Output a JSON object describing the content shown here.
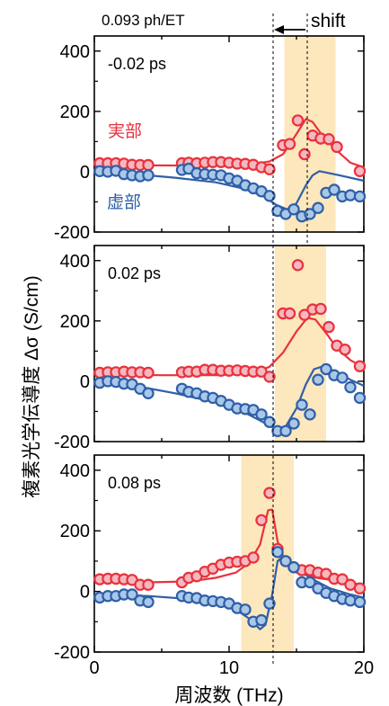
{
  "figure": {
    "fluence_label": "0.093 ph/ET",
    "shift_label": "shift",
    "ylabel": "複素光学伝導度 Δσ (S/cm)",
    "xlabel": "周波数 (THz)",
    "real_label": "実部",
    "imag_label": "虚部",
    "colors": {
      "real": "#e8323c",
      "real_fill": "#f5b8c0",
      "imag": "#2f5fa8",
      "imag_fill": "#a9c8e8",
      "band": "#fde7bc"
    }
  },
  "chart_data": [
    {
      "type": "scatter",
      "panel_label": "-0.02 ps",
      "xlim": [
        0,
        20
      ],
      "ylim": [
        -200,
        450
      ],
      "yticks": [
        -200,
        0,
        200,
        400
      ],
      "xticks": [
        0,
        10,
        20
      ],
      "shaded_band": [
        14.1,
        17.9
      ],
      "series": [
        {
          "name": "実部",
          "points": [
            [
              0.4,
              28
            ],
            [
              1.0,
              28
            ],
            [
              1.6,
              28
            ],
            [
              2.2,
              27
            ],
            [
              2.8,
              23
            ],
            [
              3.4,
              22
            ],
            [
              4.0,
              22
            ],
            [
              6.5,
              28
            ],
            [
              7.0,
              30
            ],
            [
              7.6,
              28
            ],
            [
              8.2,
              30
            ],
            [
              8.8,
              32
            ],
            [
              9.4,
              32
            ],
            [
              10.0,
              30
            ],
            [
              10.6,
              27
            ],
            [
              11.2,
              26
            ],
            [
              11.8,
              23
            ],
            [
              12.4,
              15
            ],
            [
              13.0,
              8
            ],
            [
              14.0,
              88
            ],
            [
              14.5,
              92
            ],
            [
              15.1,
              170
            ],
            [
              15.6,
              58
            ],
            [
              16.2,
              120
            ],
            [
              16.8,
              110
            ],
            [
              17.4,
              108
            ],
            [
              18.0,
              82
            ],
            [
              19.7,
              2
            ]
          ],
          "fit": [
            [
              0,
              24
            ],
            [
              4,
              21
            ],
            [
              8,
              20
            ],
            [
              10,
              21
            ],
            [
              12,
              26
            ],
            [
              13,
              34
            ],
            [
              14,
              58
            ],
            [
              15,
              125
            ],
            [
              15.7,
              175
            ],
            [
              16.2,
              165
            ],
            [
              17,
              115
            ],
            [
              18,
              70
            ],
            [
              19,
              30
            ],
            [
              20,
              14
            ]
          ]
        },
        {
          "name": "虚部",
          "points": [
            [
              0.4,
              2
            ],
            [
              1.0,
              0
            ],
            [
              1.6,
              3
            ],
            [
              2.2,
              -8
            ],
            [
              2.8,
              -12
            ],
            [
              3.4,
              -15
            ],
            [
              4.0,
              -12
            ],
            [
              6.5,
              6
            ],
            [
              7.0,
              10
            ],
            [
              7.6,
              -5
            ],
            [
              8.2,
              -8
            ],
            [
              8.8,
              -10
            ],
            [
              9.4,
              -12
            ],
            [
              10.0,
              -22
            ],
            [
              10.6,
              -30
            ],
            [
              11.2,
              -45
            ],
            [
              11.8,
              -55
            ],
            [
              12.4,
              -65
            ],
            [
              13.0,
              -80
            ],
            [
              13.6,
              -130
            ],
            [
              14.2,
              -140
            ],
            [
              14.8,
              -125
            ],
            [
              15.4,
              -148
            ],
            [
              16.0,
              -140
            ],
            [
              16.6,
              -120
            ],
            [
              17.2,
              -70
            ],
            [
              17.8,
              -60
            ],
            [
              18.4,
              -82
            ],
            [
              19.0,
              -78
            ],
            [
              19.7,
              -82
            ]
          ],
          "fit": [
            [
              0,
              0
            ],
            [
              3,
              -8
            ],
            [
              6,
              -20
            ],
            [
              9,
              -35
            ],
            [
              11,
              -55
            ],
            [
              12.5,
              -80
            ],
            [
              13.5,
              -110
            ],
            [
              14.3,
              -125
            ],
            [
              15.0,
              -105
            ],
            [
              15.7,
              -45
            ],
            [
              16.2,
              -12
            ],
            [
              16.7,
              2
            ],
            [
              18,
              -10
            ],
            [
              20,
              -30
            ]
          ]
        }
      ]
    },
    {
      "type": "scatter",
      "panel_label": "0.02 ps",
      "xlim": [
        0,
        20
      ],
      "ylim": [
        -200,
        450
      ],
      "yticks": [
        -200,
        0,
        200,
        400
      ],
      "xticks": [
        0,
        10,
        20
      ],
      "shaded_band": [
        13.4,
        17.2
      ],
      "series": [
        {
          "name": "実部",
          "points": [
            [
              0.4,
              28
            ],
            [
              1.0,
              30
            ],
            [
              1.6,
              30
            ],
            [
              2.2,
              32
            ],
            [
              2.8,
              30
            ],
            [
              3.4,
              30
            ],
            [
              4.0,
              28
            ],
            [
              6.5,
              30
            ],
            [
              7.0,
              32
            ],
            [
              7.6,
              32
            ],
            [
              8.2,
              38
            ],
            [
              8.8,
              38
            ],
            [
              9.4,
              35
            ],
            [
              10.0,
              35
            ],
            [
              10.6,
              36
            ],
            [
              11.2,
              34
            ],
            [
              11.8,
              32
            ],
            [
              12.4,
              32
            ],
            [
              13.0,
              15
            ],
            [
              14.0,
              225
            ],
            [
              14.5,
              225
            ],
            [
              15.1,
              385
            ],
            [
              15.6,
              220
            ],
            [
              16.2,
              238
            ],
            [
              16.8,
              240
            ],
            [
              17.4,
              180
            ],
            [
              18.0,
              118
            ],
            [
              18.6,
              105
            ],
            [
              19.7,
              50
            ]
          ],
          "fit": [
            [
              0,
              22
            ],
            [
              5,
              20
            ],
            [
              9,
              20
            ],
            [
              11,
              24
            ],
            [
              12,
              30
            ],
            [
              13,
              48
            ],
            [
              14,
              95
            ],
            [
              15,
              165
            ],
            [
              15.8,
              210
            ],
            [
              16.4,
              205
            ],
            [
              17.2,
              160
            ],
            [
              18,
              110
            ],
            [
              19,
              70
            ],
            [
              20,
              45
            ]
          ]
        },
        {
          "name": "虚部",
          "points": [
            [
              0.4,
              -5
            ],
            [
              1.0,
              0
            ],
            [
              1.6,
              -2
            ],
            [
              2.2,
              -8
            ],
            [
              2.8,
              -10
            ],
            [
              3.4,
              -25
            ],
            [
              4.0,
              -40
            ],
            [
              6.5,
              -25
            ],
            [
              7.0,
              -35
            ],
            [
              7.6,
              -40
            ],
            [
              8.2,
              -50
            ],
            [
              8.8,
              -55
            ],
            [
              9.4,
              -65
            ],
            [
              10.0,
              -78
            ],
            [
              10.6,
              -90
            ],
            [
              11.2,
              -92
            ],
            [
              11.8,
              -95
            ],
            [
              12.4,
              -110
            ],
            [
              13.0,
              -135
            ],
            [
              13.6,
              -165
            ],
            [
              14.2,
              -165
            ],
            [
              14.8,
              -140
            ],
            [
              15.4,
              -78
            ],
            [
              16.0,
              -110
            ],
            [
              16.6,
              5
            ],
            [
              17.2,
              40
            ],
            [
              17.8,
              20
            ],
            [
              18.4,
              12
            ],
            [
              19.0,
              -20
            ],
            [
              19.7,
              -55
            ]
          ],
          "fit": [
            [
              0,
              -2
            ],
            [
              3,
              -15
            ],
            [
              6,
              -40
            ],
            [
              9,
              -70
            ],
            [
              11,
              -100
            ],
            [
              12.5,
              -135
            ],
            [
              13.5,
              -160
            ],
            [
              14.2,
              -150
            ],
            [
              15,
              -90
            ],
            [
              15.7,
              -10
            ],
            [
              16.3,
              40
            ],
            [
              17,
              50
            ],
            [
              18,
              30
            ],
            [
              19,
              5
            ],
            [
              20,
              -15
            ]
          ]
        }
      ]
    },
    {
      "type": "scatter",
      "panel_label": "0.08 ps",
      "xlim": [
        0,
        20
      ],
      "ylim": [
        -200,
        450
      ],
      "yticks": [
        -200,
        0,
        200,
        400
      ],
      "xticks": [
        0,
        10,
        20
      ],
      "shaded_band": [
        10.9,
        14.8
      ],
      "series": [
        {
          "name": "実部",
          "points": [
            [
              0.4,
              40
            ],
            [
              1.0,
              42
            ],
            [
              1.6,
              42
            ],
            [
              2.2,
              40
            ],
            [
              2.8,
              38
            ],
            [
              3.4,
              22
            ],
            [
              4.0,
              22
            ],
            [
              6.5,
              30
            ],
            [
              7.0,
              45
            ],
            [
              7.6,
              50
            ],
            [
              8.2,
              65
            ],
            [
              8.8,
              75
            ],
            [
              9.4,
              88
            ],
            [
              10.0,
              95
            ],
            [
              10.6,
              98
            ],
            [
              11.2,
              100
            ],
            [
              11.8,
              112
            ],
            [
              12.4,
              235
            ],
            [
              13.0,
              325
            ],
            [
              13.6,
              140
            ],
            [
              14.2,
              100
            ],
            [
              14.8,
              80
            ],
            [
              15.4,
              70
            ],
            [
              16.0,
              70
            ],
            [
              16.6,
              62
            ],
            [
              17.2,
              58
            ],
            [
              17.8,
              42
            ],
            [
              18.4,
              40
            ],
            [
              19.0,
              22
            ],
            [
              19.7,
              10
            ]
          ],
          "fit": [
            [
              0,
              35
            ],
            [
              4,
              30
            ],
            [
              7,
              33
            ],
            [
              9,
              45
            ],
            [
              10.5,
              62
            ],
            [
              11.5,
              95
            ],
            [
              12.3,
              155
            ],
            [
              12.9,
              268
            ],
            [
              13.2,
              270
            ],
            [
              13.6,
              165
            ],
            [
              14.2,
              95
            ],
            [
              15,
              62
            ],
            [
              16.5,
              45
            ],
            [
              18,
              35
            ],
            [
              20,
              22
            ]
          ]
        },
        {
          "name": "虚部",
          "points": [
            [
              0.4,
              -20
            ],
            [
              1.0,
              -15
            ],
            [
              1.6,
              -15
            ],
            [
              2.2,
              -10
            ],
            [
              2.8,
              -10
            ],
            [
              3.4,
              -30
            ],
            [
              4.0,
              -35
            ],
            [
              6.5,
              -15
            ],
            [
              7.0,
              -20
            ],
            [
              7.6,
              -22
            ],
            [
              8.2,
              -30
            ],
            [
              8.8,
              -32
            ],
            [
              9.4,
              -35
            ],
            [
              10.0,
              -40
            ],
            [
              10.6,
              -55
            ],
            [
              11.2,
              -60
            ],
            [
              11.8,
              -100
            ],
            [
              12.4,
              -95
            ],
            [
              13.0,
              -40
            ],
            [
              13.6,
              130
            ],
            [
              14.2,
              100
            ],
            [
              14.8,
              80
            ],
            [
              15.4,
              30
            ],
            [
              16.0,
              30
            ],
            [
              16.6,
              10
            ],
            [
              17.2,
              -5
            ],
            [
              17.8,
              -15
            ],
            [
              18.4,
              -25
            ],
            [
              19.0,
              -30
            ],
            [
              19.7,
              -35
            ]
          ],
          "fit": [
            [
              0,
              -10
            ],
            [
              4,
              -15
            ],
            [
              7,
              -25
            ],
            [
              9,
              -40
            ],
            [
              10.5,
              -60
            ],
            [
              11.5,
              -90
            ],
            [
              12.3,
              -125
            ],
            [
              12.7,
              -110
            ],
            [
              13.2,
              -10
            ],
            [
              13.6,
              100
            ],
            [
              14,
              115
            ],
            [
              14.8,
              85
            ],
            [
              16,
              45
            ],
            [
              17.5,
              10
            ],
            [
              19,
              -10
            ],
            [
              20,
              -20
            ]
          ]
        }
      ]
    }
  ]
}
